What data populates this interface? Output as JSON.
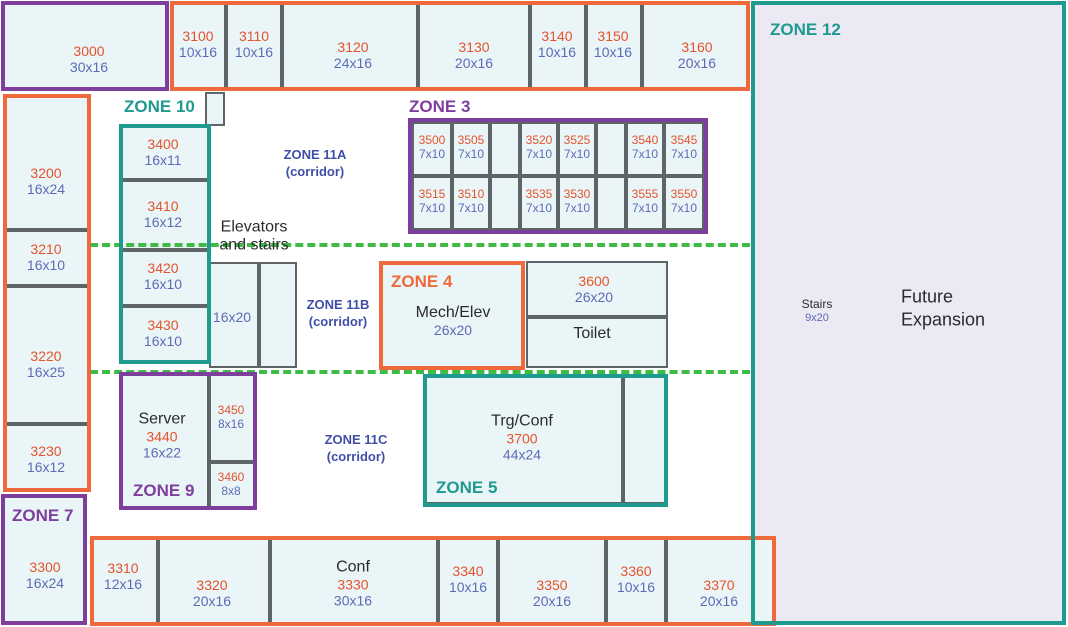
{
  "colors": {
    "orange": "#ee6a3d",
    "purple": "#7e3f9c",
    "teal": "#1f9a8f",
    "room_fill": "#eaf5f8",
    "dash": "#3dbb44",
    "number": "#e5532b",
    "dimension": "#5b6cb5"
  },
  "rooms": {
    "r3000": {
      "num": "3000",
      "dim": "30x16"
    },
    "r3100": {
      "num": "3100",
      "dim": "10x16"
    },
    "r3110": {
      "num": "3110",
      "dim": "10x16"
    },
    "r3120": {
      "num": "3120",
      "dim": "24x16"
    },
    "r3130": {
      "num": "3130",
      "dim": "20x16"
    },
    "r3140": {
      "num": "3140",
      "dim": "10x16"
    },
    "r3150": {
      "num": "3150",
      "dim": "10x16"
    },
    "r3160": {
      "num": "3160",
      "dim": "20x16"
    },
    "r3200": {
      "num": "3200",
      "dim": "16x24"
    },
    "r3210": {
      "num": "3210",
      "dim": "16x10"
    },
    "r3220": {
      "num": "3220",
      "dim": "16x25"
    },
    "r3230": {
      "num": "3230",
      "dim": "16x12"
    },
    "r3300": {
      "num": "3300",
      "dim": "16x24"
    },
    "r3310": {
      "num": "3310",
      "dim": "12x16"
    },
    "r3320": {
      "num": "3320",
      "dim": "20x16"
    },
    "r3330": {
      "num": "3330",
      "dim": "30x16",
      "name": "Conf"
    },
    "r3340": {
      "num": "3340",
      "dim": "10x16"
    },
    "r3350": {
      "num": "3350",
      "dim": "20x16"
    },
    "r3360": {
      "num": "3360",
      "dim": "10x16"
    },
    "r3370": {
      "num": "3370",
      "dim": "20x16"
    },
    "r3400": {
      "num": "3400",
      "dim": "16x11"
    },
    "r3410": {
      "num": "3410",
      "dim": "16x12"
    },
    "r3420": {
      "num": "3420",
      "dim": "16x10"
    },
    "r3430": {
      "num": "3430",
      "dim": "16x10"
    },
    "r3440": {
      "num": "3440",
      "dim": "16x22",
      "name": "Server"
    },
    "r3450": {
      "num": "3450",
      "dim": "8x16"
    },
    "r3460": {
      "num": "3460",
      "dim": "8x8"
    },
    "r3500": {
      "num": "3500",
      "dim": "7x10"
    },
    "r3505": {
      "num": "3505",
      "dim": "7x10"
    },
    "r3520": {
      "num": "3520",
      "dim": "7x10"
    },
    "r3525": {
      "num": "3525",
      "dim": "7x10"
    },
    "r3540": {
      "num": "3540",
      "dim": "7x10"
    },
    "r3545": {
      "num": "3545",
      "dim": "7x10"
    },
    "r3515": {
      "num": "3515",
      "dim": "7x10"
    },
    "r3510": {
      "num": "3510",
      "dim": "7x10"
    },
    "r3535": {
      "num": "3535",
      "dim": "7x10"
    },
    "r3530": {
      "num": "3530",
      "dim": "7x10"
    },
    "r3555": {
      "num": "3555",
      "dim": "7x10"
    },
    "r3550": {
      "num": "3550",
      "dim": "7x10"
    },
    "r3600": {
      "num": "3600",
      "dim": "26x20"
    },
    "r3700": {
      "num": "3700",
      "dim": "44x24",
      "name": "Trg/Conf"
    },
    "mech": {
      "name": "Mech/Elev",
      "dim": "26x20"
    },
    "toilet": {
      "name": "Toilet"
    },
    "elevators": {
      "name": "Elevators and stairs",
      "dim": "16x20"
    },
    "stairs": {
      "name": "Stairs",
      "dim": "9x20"
    },
    "future": {
      "name": "Future Expansion"
    }
  },
  "zones": {
    "z3": "ZONE 3",
    "z4": "ZONE 4",
    "z5": "ZONE 5",
    "z7": "ZONE 7",
    "z9": "ZONE 9",
    "z10": "ZONE 10",
    "z12": "ZONE 12"
  },
  "corridors": {
    "c11a": {
      "name": "ZONE 11A",
      "sub": "(corridor)"
    },
    "c11b": {
      "name": "ZONE 11B",
      "sub": "(corridor)"
    },
    "c11c": {
      "name": "ZONE 11C",
      "sub": "(corridor)"
    }
  }
}
